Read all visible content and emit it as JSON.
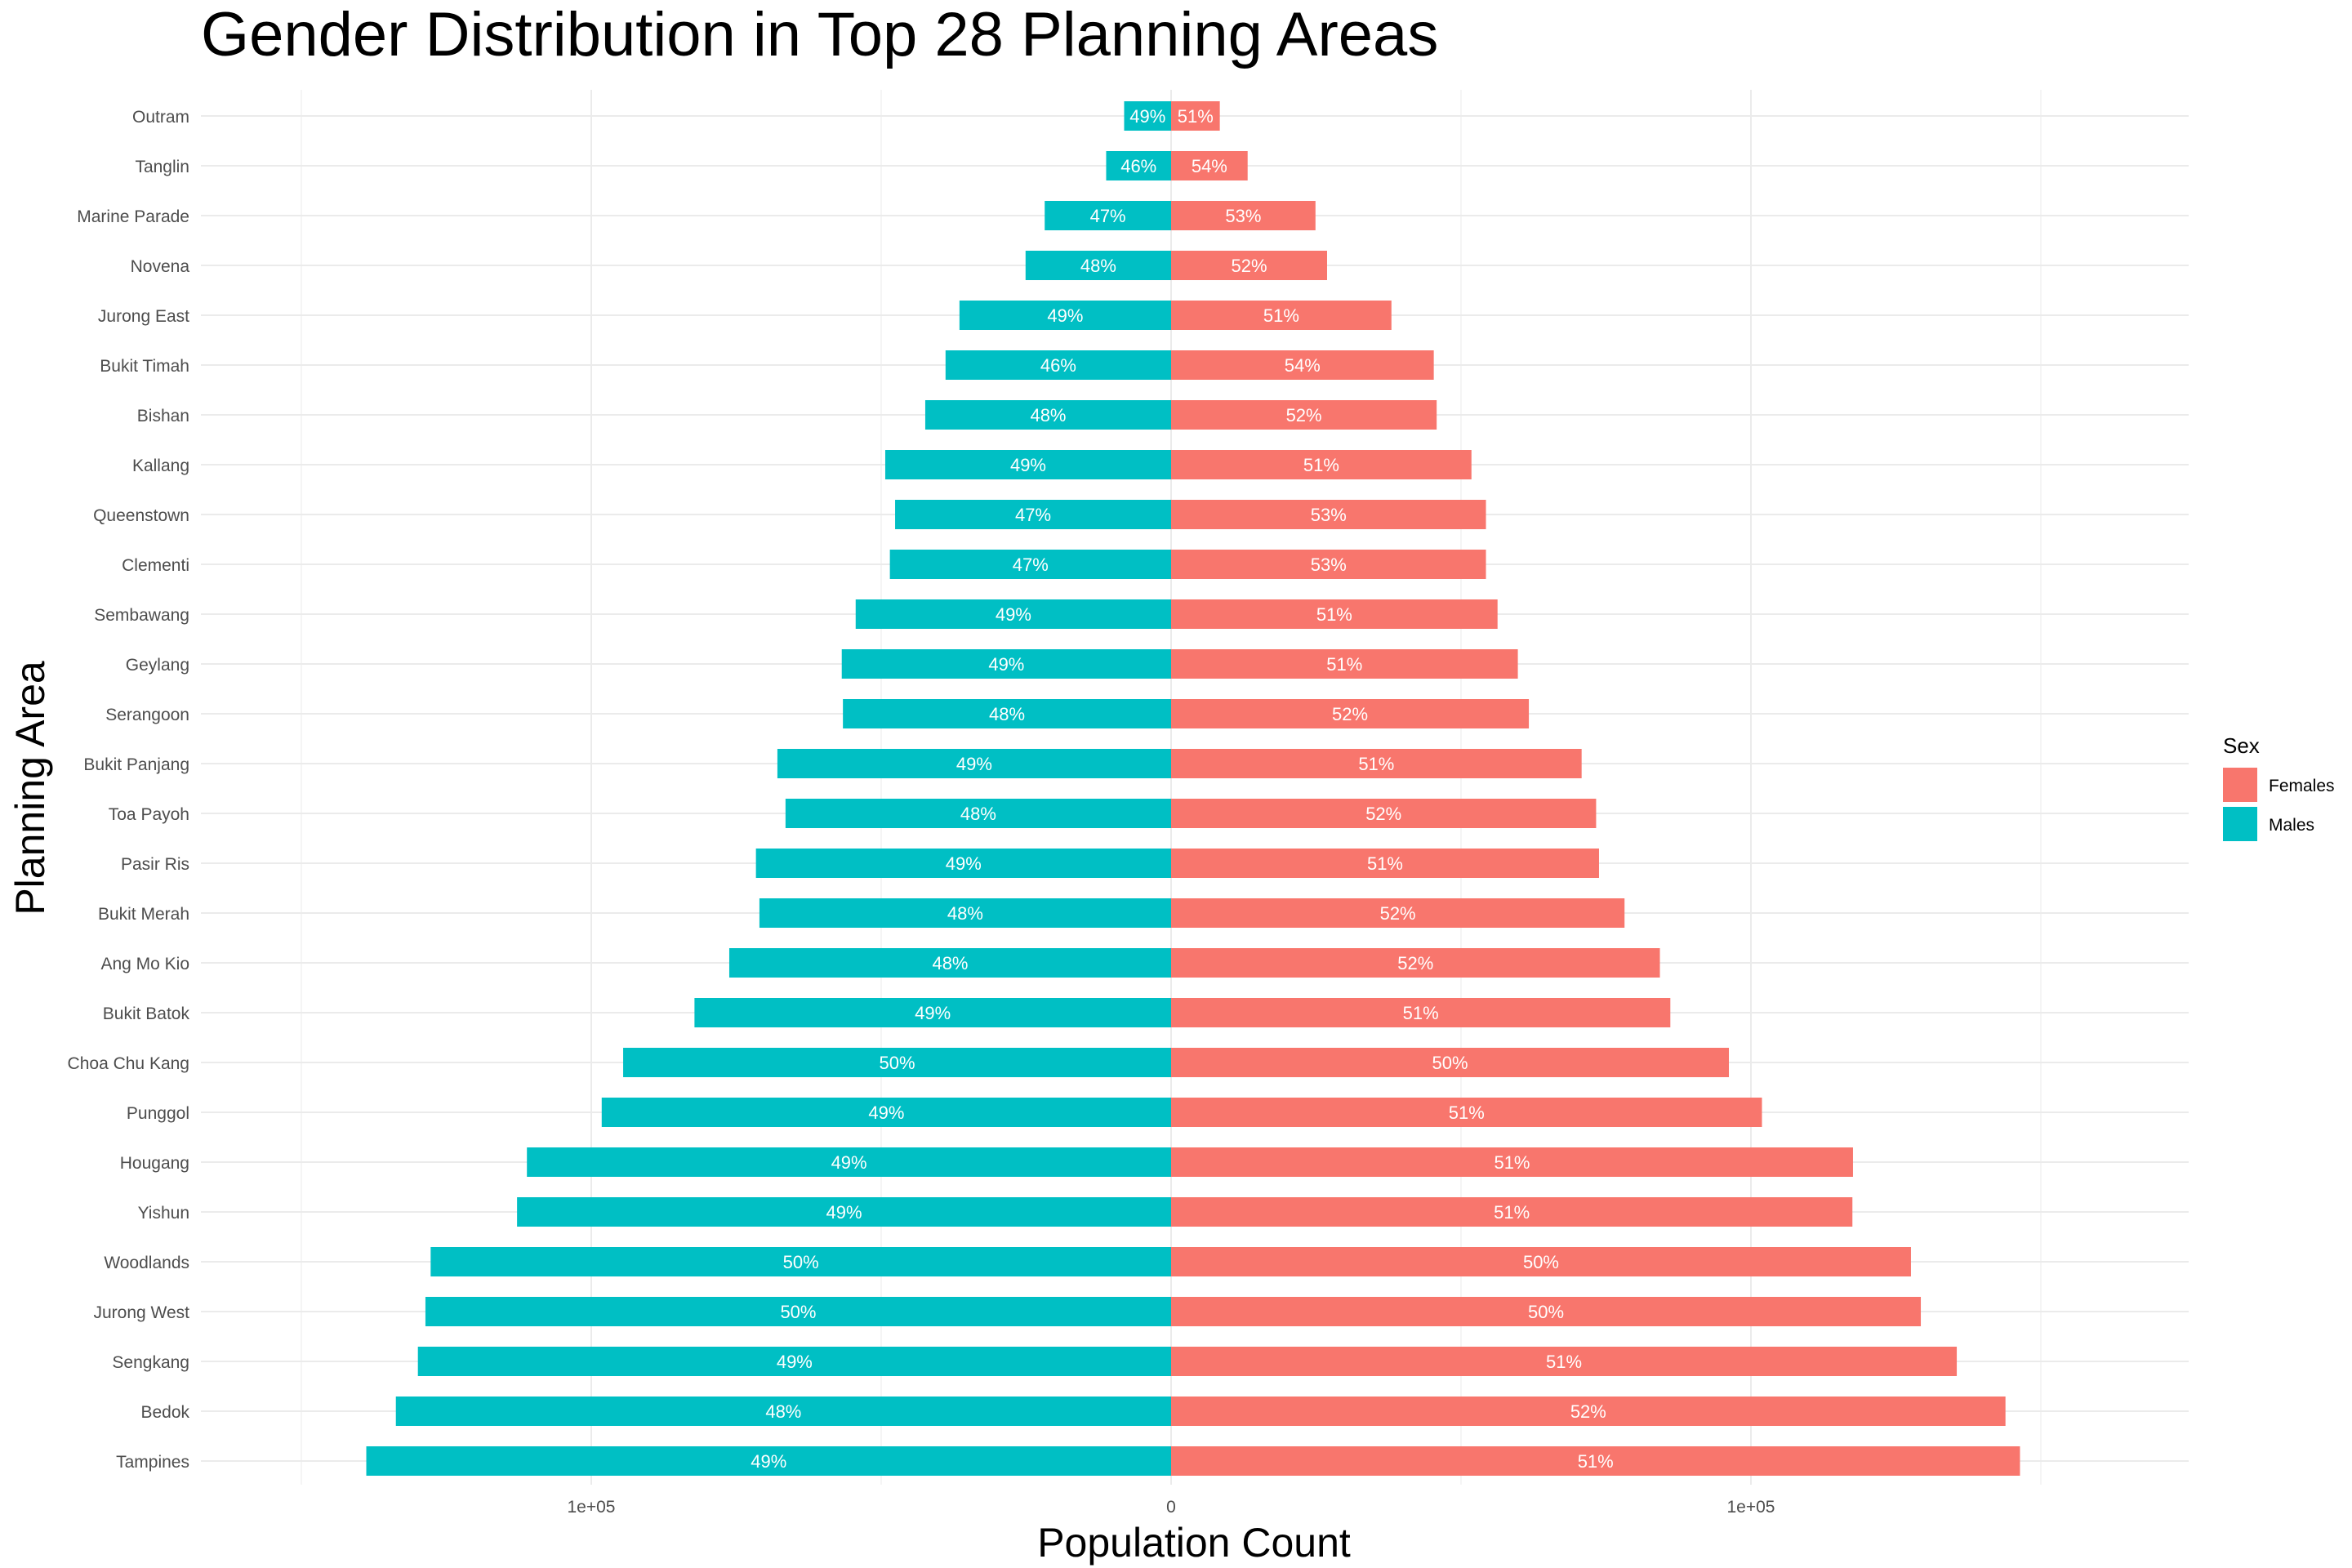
{
  "chart_data": {
    "type": "bar",
    "orientation": "horizontal",
    "layout": "diverging",
    "title": "Gender Distribution in Top 28 Planning Areas",
    "xlabel": "Population Count",
    "ylabel": "Planning Area",
    "x_ticks": [
      {
        "value": -100000,
        "label": "1e+05"
      },
      {
        "value": 0,
        "label": "0"
      },
      {
        "value": 100000,
        "label": "1e+05"
      }
    ],
    "xlim": [
      -168000,
      176000
    ],
    "grid": true,
    "legend": {
      "title": "Sex",
      "position": "right",
      "entries": [
        {
          "name": "Females",
          "color": "#F8766D"
        },
        {
          "name": "Males",
          "color": "#00BFC4"
        }
      ]
    },
    "categories": [
      "Outram",
      "Tanglin",
      "Marine Parade",
      "Novena",
      "Jurong East",
      "Bukit Timah",
      "Bishan",
      "Kallang",
      "Queenstown",
      "Clementi",
      "Sembawang",
      "Geylang",
      "Serangoon",
      "Bukit Panjang",
      "Toa Payoh",
      "Pasir Ris",
      "Bukit Merah",
      "Ang Mo Kio",
      "Bukit Batok",
      "Choa Chu Kang",
      "Punggol",
      "Hougang",
      "Yishun",
      "Woodlands",
      "Jurong West",
      "Sengkang",
      "Bedok",
      "Tampines"
    ],
    "series": [
      {
        "name": "Males",
        "color": "#00BFC4",
        "values": [
          8100,
          11200,
          21800,
          25100,
          36500,
          38900,
          42400,
          49300,
          47600,
          48500,
          54400,
          56800,
          56600,
          67900,
          66500,
          71600,
          71000,
          76200,
          82200,
          94500,
          98200,
          111100,
          112800,
          127700,
          128600,
          129900,
          133700,
          138800
        ],
        "labels": [
          "49%",
          "46%",
          "47%",
          "48%",
          "49%",
          "46%",
          "48%",
          "49%",
          "47%",
          "47%",
          "49%",
          "49%",
          "48%",
          "49%",
          "48%",
          "49%",
          "48%",
          "48%",
          "49%",
          "50%",
          "49%",
          "49%",
          "49%",
          "50%",
          "50%",
          "49%",
          "48%",
          "49%"
        ]
      },
      {
        "name": "Females",
        "color": "#F8766D",
        "values": [
          8400,
          13200,
          24900,
          26900,
          38000,
          45300,
          45800,
          51800,
          54300,
          54300,
          56300,
          59800,
          61700,
          70800,
          73300,
          73800,
          78200,
          84300,
          86100,
          96200,
          101900,
          117600,
          117500,
          127600,
          129300,
          135500,
          143900,
          146400
        ],
        "labels": [
          "51%",
          "54%",
          "53%",
          "52%",
          "51%",
          "54%",
          "52%",
          "51%",
          "53%",
          "53%",
          "51%",
          "51%",
          "52%",
          "51%",
          "52%",
          "51%",
          "52%",
          "52%",
          "51%",
          "50%",
          "51%",
          "51%",
          "51%",
          "50%",
          "50%",
          "51%",
          "52%",
          "51%"
        ]
      }
    ]
  }
}
